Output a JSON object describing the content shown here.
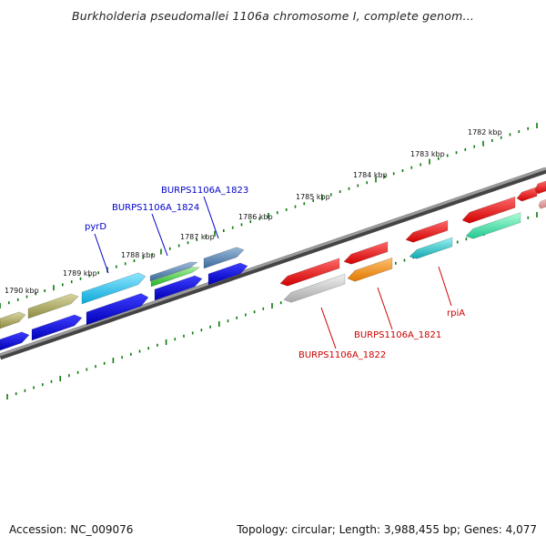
{
  "title": "Burkholderia pseudomallei 1106a chromosome I, complete genom...",
  "footer": {
    "accession": "Accession: NC_009076",
    "topology": "Topology: circular; Length: 3,988,455 bp; Genes: 4,077"
  },
  "colors": {
    "backbone": "#7a7a7a",
    "tick": "#0a7a0a",
    "label_blue": "#0000cc",
    "label_red": "#cc0000"
  },
  "scale_labels": [
    "1790 kbp",
    "1789 kbp",
    "1788 kbp",
    "1787 kbp",
    "1786 kbp",
    "1785 kbp",
    "1784 kbp",
    "1783 kbp",
    "1782 kbp"
  ],
  "gene_labels_top": [
    "pyrD",
    "BURPS1106A_1824",
    "BURPS1106A_1823"
  ],
  "gene_labels_bottom": [
    "BURPS1106A_1822",
    "BURPS1106A_1821",
    "rpiA"
  ]
}
